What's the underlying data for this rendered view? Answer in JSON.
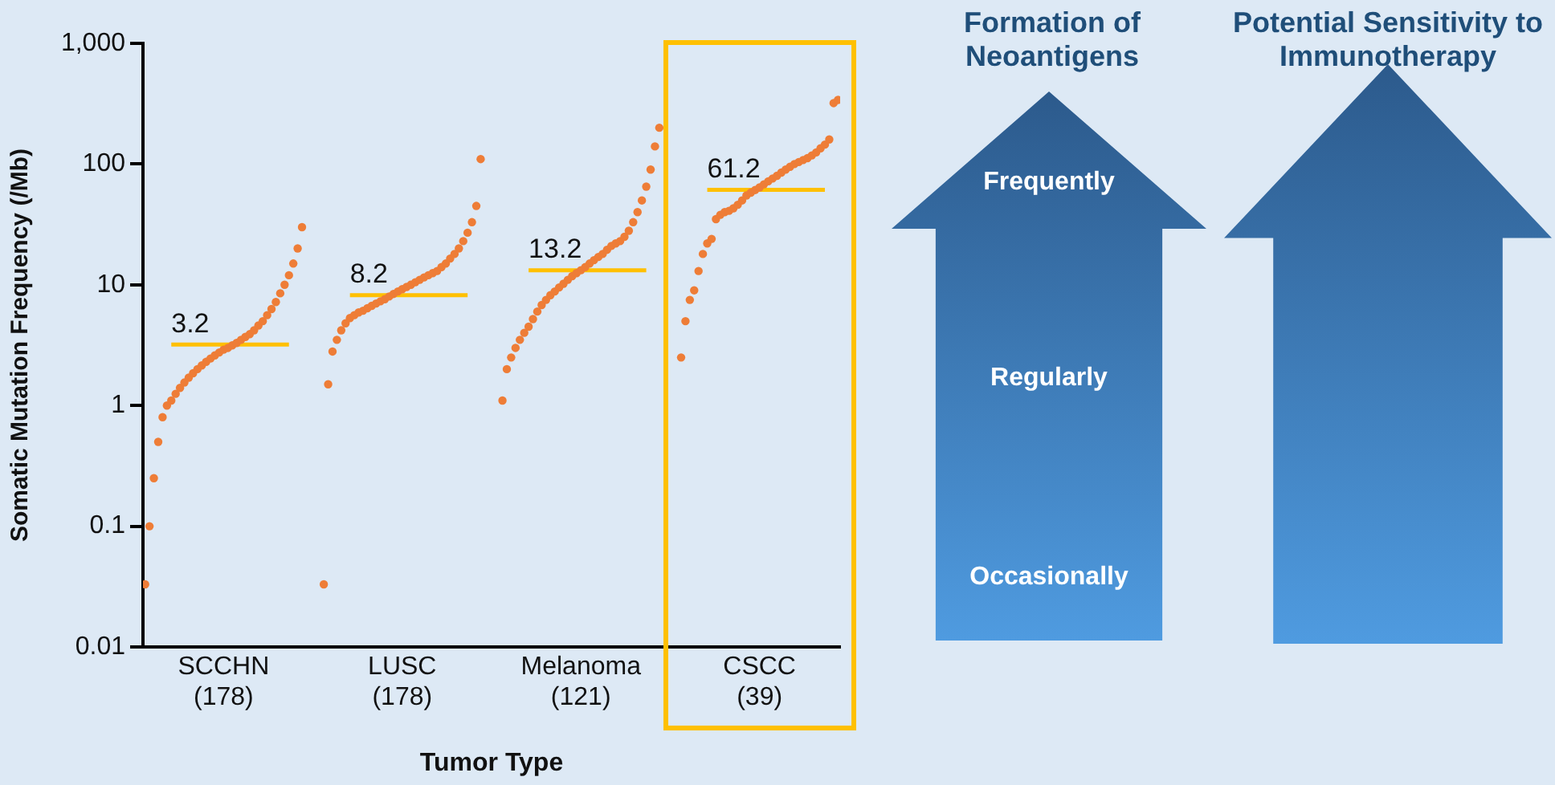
{
  "chart_data": {
    "type": "scatter",
    "xlabel": "Tumor Type",
    "ylabel": "Somatic Mutation Frequency (/Mb)",
    "log": "y",
    "marker": "circle",
    "grid": false,
    "categories": [
      null,
      null,
      null,
      null,
      null,
      null,
      null,
      null,
      null,
      null,
      null,
      null,
      null,
      null,
      null,
      null,
      null,
      null,
      null,
      null,
      "SCCHN (178)",
      null,
      null,
      null,
      null,
      null,
      null,
      null,
      null,
      null,
      null,
      null,
      null,
      null,
      null,
      null,
      null,
      null,
      null,
      null,
      null,
      null,
      null,
      null,
      null,
      null,
      null,
      null,
      null,
      null,
      null,
      null,
      null,
      null,
      null,
      null,
      null,
      null,
      null,
      null,
      null,
      "LUSC (178)",
      null,
      null,
      null,
      null,
      null,
      null,
      null,
      null,
      null,
      null,
      null,
      null,
      null,
      null,
      null,
      null,
      null,
      null,
      null,
      null,
      null,
      null,
      null,
      null,
      null,
      null,
      null,
      null,
      null,
      null,
      null,
      null,
      null,
      null,
      null,
      null,
      null,
      null,
      null,
      null,
      "Melanoma (121)",
      null,
      null,
      null,
      null,
      null,
      null,
      null,
      null,
      null,
      null,
      null,
      null,
      null,
      null,
      null,
      null,
      null,
      null,
      null,
      null,
      null,
      null,
      null,
      null,
      null,
      null,
      null,
      null,
      null,
      null,
      null,
      null,
      null,
      null,
      null,
      null,
      null,
      null,
      null,
      null,
      "CSCC (39)",
      null,
      null,
      null,
      null,
      null,
      null,
      null,
      null,
      null,
      null,
      null,
      null,
      null,
      null,
      null,
      null,
      null,
      null,
      null,
      null
    ],
    "ylim": [
      0.01,
      1000
    ],
    "yticks": [
      0.01,
      0.1,
      1,
      10,
      100,
      {
        "value": 1000,
        "label": "1,000"
      }
    ],
    "series": [
      {
        "color": "#ee7d37",
        "values": [
          null,
          null,
          0.033,
          0.1,
          0.25,
          0.5,
          0.8,
          1.0,
          1.1,
          1.25,
          1.4,
          1.55,
          1.7,
          1.85,
          2.0,
          2.15,
          2.3,
          2.45,
          2.6,
          2.75,
          2.9,
          3.0,
          3.15,
          3.3,
          3.5,
          3.7,
          3.9,
          4.2,
          4.6,
          5.0,
          5.6,
          6.3,
          7.2,
          8.5,
          10,
          12,
          15,
          20,
          30,
          null,
          null,
          null,
          null,
          0.033,
          1.5,
          2.8,
          3.5,
          4.2,
          4.8,
          5.3,
          5.6,
          5.9,
          6.1,
          6.4,
          6.7,
          7.0,
          7.3,
          7.6,
          8.0,
          8.4,
          8.8,
          9.2,
          9.6,
          10,
          10.5,
          11,
          11.5,
          12,
          12.5,
          13,
          14,
          15,
          16.5,
          18,
          20,
          23,
          27,
          33,
          45,
          110,
          null,
          null,
          null,
          null,
          1.1,
          2.0,
          2.5,
          3.0,
          3.5,
          4.0,
          4.5,
          5.2,
          6.0,
          6.8,
          7.5,
          8.2,
          8.8,
          9.5,
          10.2,
          11,
          11.8,
          12.5,
          13.2,
          14,
          15,
          16,
          17,
          18,
          19.5,
          21,
          22,
          23,
          25,
          28,
          33,
          40,
          50,
          65,
          90,
          140,
          200,
          null,
          null,
          null,
          null,
          2.5,
          5,
          7.5,
          9,
          13,
          18,
          22,
          24,
          35,
          38,
          40,
          41,
          43,
          46,
          50,
          55,
          58,
          61,
          64,
          68,
          72,
          76,
          80,
          85,
          90,
          95,
          100,
          104,
          108,
          112,
          118,
          125,
          135,
          145,
          160,
          320,
          340,
          null,
          null
        ]
      },
      {
        "type": "line",
        "marker": "none",
        "color": "#ffc000",
        "values": [
          null,
          null,
          null,
          null,
          null,
          null,
          null,
          null,
          3.2,
          3.2,
          3.2,
          3.2,
          3.2,
          3.2,
          3.2,
          3.2,
          3.2,
          3.2,
          3.2,
          3.2,
          3.2,
          3.2,
          3.2,
          3.2,
          3.2,
          3.2,
          3.2,
          3.2,
          3.2,
          3.2,
          3.2,
          3.2,
          3.2,
          3.2,
          3.2,
          3.2,
          null,
          null,
          null,
          null,
          null,
          null,
          null,
          null,
          null,
          null,
          null,
          null,
          null,
          8.2,
          8.2,
          8.2,
          8.2,
          8.2,
          8.2,
          8.2,
          8.2,
          8.2,
          8.2,
          8.2,
          8.2,
          8.2,
          8.2,
          8.2,
          8.2,
          8.2,
          8.2,
          8.2,
          8.2,
          8.2,
          8.2,
          8.2,
          8.2,
          8.2,
          8.2,
          8.2,
          8.2,
          null,
          null,
          null,
          null,
          null,
          null,
          null,
          null,
          null,
          null,
          null,
          null,
          null,
          13.2,
          13.2,
          13.2,
          13.2,
          13.2,
          13.2,
          13.2,
          13.2,
          13.2,
          13.2,
          13.2,
          13.2,
          13.2,
          13.2,
          13.2,
          13.2,
          13.2,
          13.2,
          13.2,
          13.2,
          13.2,
          13.2,
          13.2,
          13.2,
          13.2,
          13.2,
          13.2,
          13.2,
          null,
          null,
          null,
          null,
          null,
          null,
          null,
          null,
          null,
          null,
          null,
          null,
          null,
          61.2,
          61.2,
          61.2,
          61.2,
          61.2,
          61.2,
          61.2,
          61.2,
          61.2,
          61.2,
          61.2,
          61.2,
          61.2,
          61.2,
          61.2,
          61.2,
          61.2,
          61.2,
          61.2,
          61.2,
          61.2,
          61.2,
          61.2,
          61.2,
          61.2,
          61.2,
          61.2,
          61.2,
          null,
          null,
          null,
          null,
          null
        ],
        "value_labels": [
          null,
          null,
          null,
          null,
          null,
          null,
          null,
          null,
          "3.2",
          null,
          null,
          null,
          null,
          null,
          null,
          null,
          null,
          null,
          null,
          null,
          null,
          null,
          null,
          null,
          null,
          null,
          null,
          null,
          null,
          null,
          null,
          null,
          null,
          null,
          null,
          null,
          null,
          null,
          null,
          null,
          null,
          null,
          null,
          null,
          null,
          null,
          null,
          null,
          null,
          "8.2",
          null,
          null,
          null,
          null,
          null,
          null,
          null,
          null,
          null,
          null,
          null,
          null,
          null,
          null,
          null,
          null,
          null,
          null,
          null,
          null,
          null,
          null,
          null,
          null,
          null,
          null,
          null,
          null,
          null,
          null,
          null,
          null,
          null,
          null,
          null,
          null,
          null,
          null,
          null,
          null,
          "13.2",
          null,
          null,
          null,
          null,
          null,
          null,
          null,
          null,
          null,
          null,
          null,
          null,
          null,
          null,
          null,
          null,
          null,
          null,
          null,
          null,
          null,
          null,
          null,
          null,
          null,
          null,
          null,
          null,
          null,
          null,
          null,
          null,
          null,
          null,
          null,
          null,
          null,
          null,
          null,
          null,
          "61.2",
          null,
          null,
          null,
          null,
          null,
          null,
          null,
          null,
          null,
          null,
          null,
          null,
          null,
          null,
          null,
          null,
          null,
          null,
          null,
          null,
          null,
          null,
          null,
          null,
          null,
          null,
          null,
          null,
          null,
          null,
          null,
          null
        ]
      }
    ],
    "annotations": [
      "Formation of Neoantigens",
      "Potential Sensitivity to Immunotherapy",
      "Frequently",
      "Regularly",
      "Occasionally"
    ]
  }
}
